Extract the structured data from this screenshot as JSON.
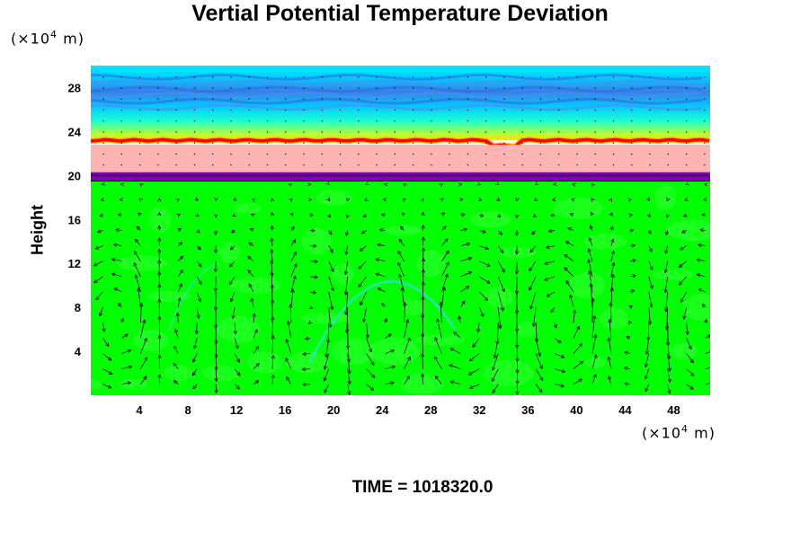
{
  "chart_data": {
    "type": "heatmap",
    "title": "Vertial Potential Temperature Deviation",
    "ylabel": "Height",
    "xlabel": "",
    "x_unit": {
      "prefix": "(×10",
      "exp": "4",
      "suffix": " m)"
    },
    "y_unit": {
      "prefix": "(×10",
      "exp": "4",
      "suffix": " m)"
    },
    "xlim": [
      0,
      51
    ],
    "ylim": [
      0,
      30
    ],
    "x_ticks": [
      "4",
      "8",
      "12",
      "16",
      "20",
      "24",
      "28",
      "32",
      "36",
      "40",
      "44",
      "48"
    ],
    "y_ticks": [
      "4",
      "8",
      "12",
      "16",
      "20",
      "24",
      "28"
    ],
    "overlay": "velocity vectors (arrows)",
    "layers": [
      {
        "name": "lower troposphere",
        "y_range": [
          0,
          19.5
        ],
        "color": "#00ff00"
      },
      {
        "name": "dark band",
        "y_range": [
          19.5,
          20.3
        ],
        "color": "#8800aa"
      },
      {
        "name": "pink band",
        "y_range": [
          20.3,
          22.8
        ],
        "color": "#ffb4b4"
      },
      {
        "name": "red line",
        "y_range": [
          22.8,
          23.2
        ],
        "color": "#ff0000"
      },
      {
        "name": "upper region",
        "y_range": [
          23.2,
          30
        ],
        "color": "#00ddff"
      }
    ]
  },
  "footer": {
    "time": "TIME = 1018320.0"
  }
}
